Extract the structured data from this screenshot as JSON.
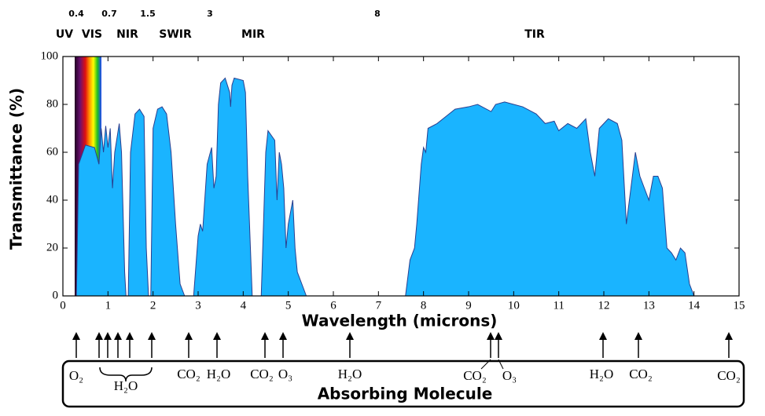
{
  "chart_data": {
    "type": "area",
    "band_edges": [
      0.4,
      0.7,
      1.5,
      3,
      8
    ],
    "bands": [
      "UV",
      "VIS",
      "NIR",
      "SWIR",
      "MIR",
      "TIR"
    ],
    "x_label": "Wavelength (microns)",
    "y_label": "Transmittance (%)",
    "xlim": [
      0,
      15
    ],
    "xticks": [
      0,
      1,
      2,
      3,
      4,
      5,
      6,
      7,
      8,
      9,
      10,
      11,
      12,
      13,
      14,
      15
    ],
    "ylim": [
      0,
      100
    ],
    "yticks": [
      0,
      20,
      40,
      60,
      80,
      100
    ],
    "x": [
      0.3,
      0.35,
      0.5,
      0.7,
      0.8,
      0.85,
      0.9,
      0.95,
      1.0,
      1.05,
      1.1,
      1.15,
      1.25,
      1.3,
      1.37,
      1.4,
      1.45,
      1.5,
      1.6,
      1.7,
      1.8,
      1.85,
      1.9,
      1.95,
      2.0,
      2.1,
      2.2,
      2.3,
      2.4,
      2.5,
      2.6,
      2.7,
      2.9,
      3.0,
      3.05,
      3.1,
      3.2,
      3.3,
      3.35,
      3.4,
      3.45,
      3.5,
      3.6,
      3.7,
      3.72,
      3.75,
      3.8,
      4.0,
      4.05,
      4.1,
      4.2,
      4.4,
      4.5,
      4.55,
      4.7,
      4.75,
      4.8,
      4.85,
      4.9,
      4.95,
      5.0,
      5.1,
      5.15,
      5.2,
      5.3,
      5.4,
      7.6,
      7.7,
      7.8,
      7.85,
      7.95,
      8.0,
      8.05,
      8.1,
      8.3,
      8.5,
      8.7,
      9.0,
      9.2,
      9.5,
      9.6,
      9.8,
      10.0,
      10.2,
      10.5,
      10.7,
      10.9,
      11.0,
      11.2,
      11.4,
      11.6,
      11.7,
      11.8,
      11.9,
      12.1,
      12.3,
      12.4,
      12.5,
      12.6,
      12.7,
      12.8,
      12.9,
      13.0,
      13.1,
      13.2,
      13.3,
      13.4,
      13.5,
      13.6,
      13.7,
      13.8,
      13.9,
      14.0
    ],
    "series": [
      {
        "color": "#1ab4ff",
        "values": [
          0,
          55,
          63,
          62,
          55,
          70,
          60,
          71,
          62,
          70,
          45,
          60,
          72,
          60,
          10,
          0,
          0,
          60,
          76,
          78,
          75,
          20,
          0,
          0,
          70,
          78,
          79,
          76,
          60,
          30,
          5,
          0,
          0,
          25,
          30,
          27,
          55,
          62,
          45,
          50,
          80,
          89,
          91,
          85,
          79,
          88,
          91,
          90,
          85,
          50,
          0,
          0,
          60,
          69,
          65,
          40,
          60,
          55,
          45,
          20,
          30,
          40,
          20,
          10,
          5,
          0,
          0,
          15,
          20,
          30,
          55,
          62,
          60,
          70,
          72,
          75,
          78,
          79,
          80,
          77,
          80,
          81,
          80,
          79,
          76,
          72,
          73,
          69,
          72,
          70,
          74,
          60,
          50,
          70,
          74,
          72,
          65,
          30,
          45,
          60,
          50,
          45,
          40,
          50,
          50,
          45,
          20,
          18,
          15,
          20,
          18,
          5,
          0
        ]
      }
    ],
    "molecules": [
      "O₂",
      "H₂O",
      "CO₂",
      "H₂O",
      "CO₂",
      "O₃",
      "H₂O",
      "CO₂",
      "O₃",
      "H₂O",
      "CO₂",
      "CO₂"
    ],
    "molecule_axis_label": "Absorbing Molecule"
  }
}
